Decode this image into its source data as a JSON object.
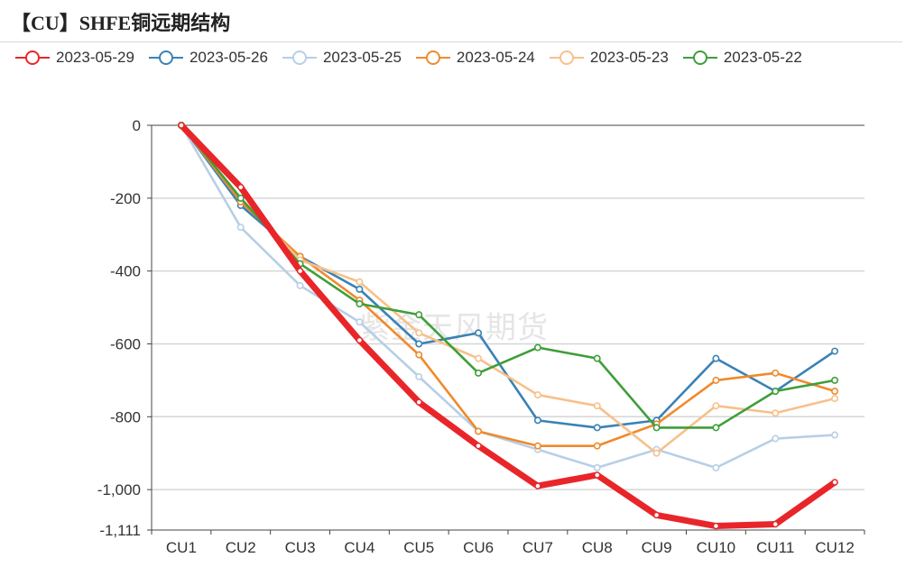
{
  "header": {
    "title": "【CU】SHFE铜远期结构"
  },
  "watermark": "紫金天风期货",
  "chart_data": {
    "type": "line",
    "title": "【CU】SHFE铜远期结构",
    "categories": [
      "CU1",
      "CU2",
      "CU3",
      "CU4",
      "CU5",
      "CU6",
      "CU7",
      "CU8",
      "CU9",
      "CU10",
      "CU11",
      "CU12"
    ],
    "ylim": [
      -1111,
      0
    ],
    "yticks": [
      0,
      -200,
      -400,
      -600,
      -800,
      -1000,
      -1111
    ],
    "ytick_labels": [
      "0",
      "-200",
      "-400",
      "-600",
      "-800",
      "-1,000",
      "-1,111"
    ],
    "grid": true,
    "legend": "top-left",
    "series": [
      {
        "name": "2023-05-29",
        "color": "#e8262a",
        "emphasis": true,
        "values": [
          0,
          -170,
          -400,
          -590,
          -760,
          -880,
          -990,
          -960,
          -1070,
          -1100,
          -1095,
          -980
        ]
      },
      {
        "name": "2023-05-26",
        "color": "#3a82b5",
        "values": [
          0,
          -220,
          -360,
          -450,
          -600,
          -570,
          -810,
          -830,
          -810,
          -640,
          -730,
          -620
        ]
      },
      {
        "name": "2023-05-25",
        "color": "#b7cfe6",
        "values": [
          0,
          -280,
          -440,
          -540,
          -690,
          -840,
          -890,
          -940,
          -890,
          -940,
          -860,
          -850
        ]
      },
      {
        "name": "2023-05-24",
        "color": "#f08a2c",
        "values": [
          0,
          -210,
          -360,
          -480,
          -630,
          -840,
          -880,
          -880,
          -820,
          -700,
          -680,
          -730
        ]
      },
      {
        "name": "2023-05-23",
        "color": "#f7c08a",
        "values": [
          0,
          -200,
          -370,
          -430,
          -570,
          -640,
          -740,
          -770,
          -900,
          -770,
          -790,
          -750
        ]
      },
      {
        "name": "2023-05-22",
        "color": "#3f9e3a",
        "values": [
          0,
          -200,
          -380,
          -490,
          -520,
          -680,
          -610,
          -640,
          -830,
          -830,
          -730,
          -700
        ]
      }
    ]
  }
}
